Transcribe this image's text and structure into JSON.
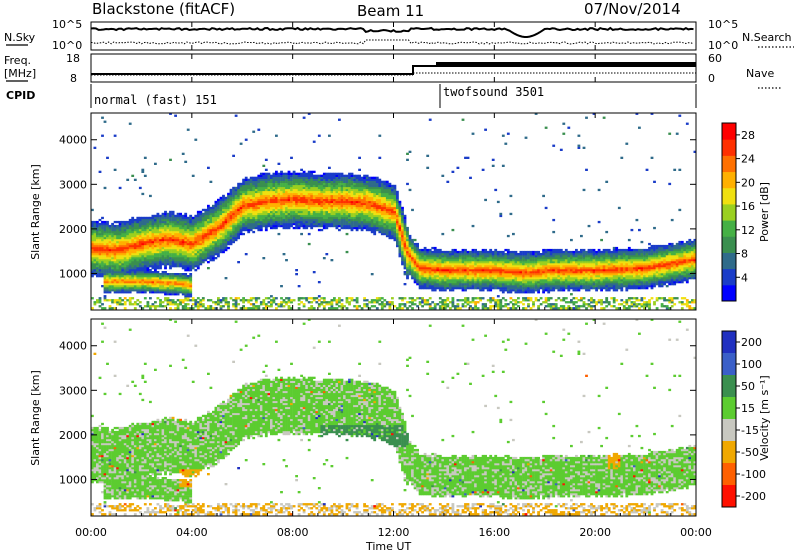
{
  "header": {
    "station": "Blackstone (fitACF)",
    "beam": "Beam 11",
    "date": "07/Nov/2014"
  },
  "strips": {
    "nsky_label": "N.Sky",
    "nsky_ticks": [
      "10^5",
      "10^0"
    ],
    "nsearch_label": "N.Search",
    "nsearch_ticks": [
      "10^5",
      "10^0"
    ],
    "freq_label": "Freq.",
    "freq_unit": "[MHz]",
    "freq_ticks": [
      "18",
      "8"
    ],
    "nave_label": "Nave",
    "nave_ticks": [
      "60",
      "0"
    ],
    "cpid_label": "CPID",
    "modes": [
      {
        "name": "normal (fast) 151",
        "start": "00:00",
        "end": "14:00"
      },
      {
        "name": "twofsound 3501",
        "start": "14:00",
        "end": "24:00"
      }
    ]
  },
  "chart_data": [
    {
      "type": "heatmap",
      "title": "",
      "xlabel": "Time UT",
      "ylabel": "Slant Range [km]",
      "x_ticks": [
        "00:00",
        "04:00",
        "08:00",
        "12:00",
        "16:00",
        "20:00",
        "00:00"
      ],
      "x_range_hours": [
        0,
        24
      ],
      "y_ticks": [
        1000,
        2000,
        3000,
        4000
      ],
      "ylim": [
        180,
        4600
      ],
      "colorbar": {
        "label": "Power [dB]",
        "ticks": [
          "4",
          "8",
          "12",
          "16",
          "20",
          "24",
          "28"
        ],
        "range": [
          0,
          30
        ],
        "colors": [
          "#0000ff",
          "#1a3cc8",
          "#2f6b8a",
          "#3a8f4f",
          "#45b045",
          "#9ad020",
          "#f0e010",
          "#ffb000",
          "#ff7000",
          "#ff3000",
          "#ff0000"
        ]
      },
      "echo_bands": [
        {
          "t": [
            0.0,
            1.0,
            2.0,
            3.0,
            4.0,
            5.0,
            6.0,
            7.0,
            8.0,
            9.0,
            10.0,
            11.0,
            12.0,
            12.5,
            13.0,
            14.0,
            16.0,
            17.0,
            17.5,
            18.0,
            20.0,
            22.0,
            24.0
          ],
          "center_km": [
            1550,
            1500,
            1650,
            1750,
            1650,
            2000,
            2500,
            2600,
            2650,
            2600,
            2600,
            2550,
            2350,
            1450,
            1100,
            1050,
            1050,
            1000,
            1000,
            1050,
            1050,
            1100,
            1300
          ],
          "peak_power_db": 28
        },
        {
          "t": [
            0.5,
            2.0,
            3.5,
            4.0
          ],
          "center_km": [
            800,
            800,
            750,
            700
          ],
          "peak_power_db": 24
        }
      ]
    },
    {
      "type": "heatmap",
      "title": "",
      "xlabel": "Time UT",
      "ylabel": "Slant Range [km]",
      "x_ticks": [
        "00:00",
        "04:00",
        "08:00",
        "12:00",
        "16:00",
        "20:00",
        "00:00"
      ],
      "x_range_hours": [
        0,
        24
      ],
      "y_ticks": [
        1000,
        2000,
        3000,
        4000
      ],
      "ylim": [
        180,
        4600
      ],
      "colorbar": {
        "label": "Velocity [m s⁻¹]",
        "ticks": [
          "200",
          "100",
          "50",
          "15",
          "-15",
          "-50",
          "-100",
          "-200"
        ],
        "colors": [
          "#2030c0",
          "#3a5fc8",
          "#3a8f4f",
          "#5ccc30",
          "#c8c8c0",
          "#f0a800",
          "#ff6000",
          "#ff1000"
        ]
      },
      "notable_features": [
        {
          "t": [
            3.5,
            5.0
          ],
          "range_km": [
            800,
            1200
          ],
          "velocity_class": "-50"
        },
        {
          "t": [
            9.0,
            12.5
          ],
          "range_km": [
            1700,
            2200
          ],
          "velocity_class": "50"
        },
        {
          "t": [
            20.5,
            21.0
          ],
          "range_km": [
            1200,
            1700
          ],
          "velocity_class": "-50"
        }
      ]
    }
  ]
}
